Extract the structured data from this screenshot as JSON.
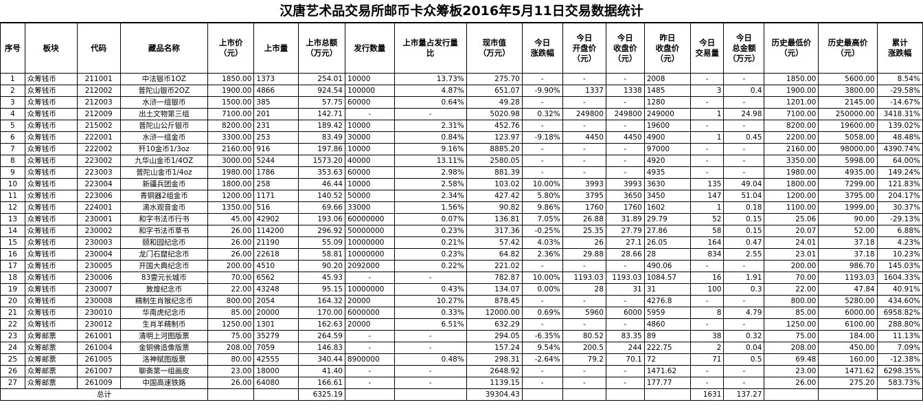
{
  "title": "汉唐艺术品交易所邮币卡众筹板2016年5月11日交易数据统计",
  "headers": [
    [
      "序号"
    ],
    [
      "板块"
    ],
    [
      "代码"
    ],
    [
      "藏品名称"
    ],
    [
      "上市价",
      "（元）"
    ],
    [
      "上市量"
    ],
    [
      "上市总额",
      "（万元）"
    ],
    [
      "发行数量"
    ],
    [
      "上市量占发行量",
      "比"
    ],
    [
      "现市值",
      "（万元）"
    ],
    [
      "今日",
      "涨跌幅"
    ],
    [
      "今日",
      "开盘价",
      "（元）"
    ],
    [
      "今日",
      "收盘价",
      "（元）"
    ],
    [
      "昨日",
      "收盘价",
      "（元）"
    ],
    [
      "今日",
      "交易量"
    ],
    [
      "今日",
      "总金额",
      "（万元）"
    ],
    [
      "历史最低价",
      "（元）"
    ],
    [
      "历史最高价",
      "（元）"
    ],
    [
      "累计",
      "涨跌幅"
    ]
  ],
  "rows": [
    [
      "1",
      "众筹钱币",
      "211001",
      "中法银币1OZ",
      "1850.00",
      "1373",
      "254.01",
      "10000",
      "13.73%",
      "275.70",
      "-",
      "-",
      "-",
      "2008",
      "-",
      "-",
      "1850.00",
      "5600.00",
      "8.54%"
    ],
    [
      "2",
      "众筹钱币",
      "212002",
      "普陀山银币2OZ",
      "1900.00",
      "4866",
      "924.54",
      "100000",
      "4.87%",
      "651.07",
      "-9.90%",
      "1337",
      "1338",
      "1485",
      "3",
      "0.4",
      "1900.00",
      "3800.00",
      "-29.58%"
    ],
    [
      "3",
      "众筹钱币",
      "212003",
      "水浒一组银币",
      "1500.00",
      "385",
      "57.75",
      "60000",
      "0.64%",
      "49.28",
      "-",
      "-",
      "-",
      "1280",
      "-",
      "-",
      "1201.00",
      "2145.00",
      "-14.67%"
    ],
    [
      "4",
      "众筹钱币",
      "212009",
      "出土文物第三组",
      "7100.00",
      "201",
      "142.71",
      "-",
      "-",
      "5020.98",
      "0.32%",
      "249800",
      "249800",
      "249000",
      "1",
      "24.98",
      "7100.00",
      "250000.00",
      "3418.31%"
    ],
    [
      "5",
      "众筹钱币",
      "215002",
      "普陀山公斤银币",
      "8200.00",
      "231",
      "189.42",
      "10000",
      "2.31%",
      "452.76",
      "-",
      "-",
      "-",
      "19600",
      "-",
      "-",
      "8200.00",
      "19600.00",
      "139.02%"
    ],
    [
      "6",
      "众筹钱币",
      "222001",
      "水浒一组金币",
      "3300.00",
      "253",
      "83.49",
      "30000",
      "0.84%",
      "123.97",
      "-9.18%",
      "4450",
      "4450",
      "4900",
      "1",
      "0.45",
      "2200.00",
      "5058.00",
      "48.48%"
    ],
    [
      "7",
      "众筹钱币",
      "222002",
      "歼10金币1/3oz",
      "2160.00",
      "916",
      "197.86",
      "10000",
      "9.16%",
      "8885.20",
      "-",
      "-",
      "-",
      "97000",
      "-",
      "-",
      "2160.00",
      "98000.00",
      "4390.74%"
    ],
    [
      "8",
      "众筹钱币",
      "223002",
      "九华山金币1/4OZ",
      "3000.00",
      "5244",
      "1573.20",
      "40000",
      "13.11%",
      "2580.05",
      "-",
      "-",
      "-",
      "4920",
      "-",
      "-",
      "3350.00",
      "5998.00",
      "64.00%"
    ],
    [
      "9",
      "众筹钱币",
      "223003",
      "普陀山金币1/4oz",
      "1980.00",
      "1786",
      "353.63",
      "60000",
      "2.98%",
      "881.39",
      "-",
      "-",
      "-",
      "4935",
      "-",
      "-",
      "1980.00",
      "4935.00",
      "149.24%"
    ],
    [
      "10",
      "众筹钱币",
      "223004",
      "新疆兵团金币",
      "1800.00",
      "258",
      "46.44",
      "10000",
      "2.58%",
      "103.02",
      "10.00%",
      "3993",
      "3993",
      "3630",
      "135",
      "49.04",
      "1800.00",
      "7299.00",
      "121.83%"
    ],
    [
      "11",
      "众筹钱币",
      "223006",
      "青铜器2组金币",
      "1200.00",
      "1171",
      "140.52",
      "50000",
      "2.34%",
      "427.42",
      "5.80%",
      "3795",
      "3650",
      "3450",
      "147",
      "51.04",
      "1200.00",
      "3795.00",
      "204.17%"
    ],
    [
      "12",
      "众筹钱币",
      "224001",
      "滴水观音金币",
      "1350.00",
      "516",
      "69.66",
      "33000",
      "1.56%",
      "90.82",
      "9.86%",
      "1760",
      "1760",
      "1602",
      "1",
      "0.18",
      "1100.00",
      "1999.00",
      "30.37%"
    ],
    [
      "13",
      "众筹钱币",
      "230001",
      "和字书法币行书",
      "45.00",
      "42902",
      "193.06",
      "60000000",
      "0.07%",
      "136.81",
      "7.05%",
      "26.88",
      "31.89",
      "29.79",
      "52",
      "0.15",
      "25.06",
      "90.00",
      "-29.13%"
    ],
    [
      "14",
      "众筹钱币",
      "230002",
      "和字书法币草书",
      "26.00",
      "114200",
      "296.92",
      "50000000",
      "0.23%",
      "317.36",
      "-0.25%",
      "25.35",
      "27.79",
      "27.86",
      "58",
      "0.15",
      "20.07",
      "52.00",
      "6.88%"
    ],
    [
      "15",
      "众筹钱币",
      "230003",
      "颐和园纪念币",
      "26.00",
      "21190",
      "55.09",
      "10000000",
      "0.21%",
      "57.42",
      "4.03%",
      "26",
      "27.1",
      "26.05",
      "164",
      "0.47",
      "24.01",
      "37.18",
      "4.23%"
    ],
    [
      "16",
      "众筹钱币",
      "230004",
      "龙门石窟纪念币",
      "26.00",
      "22618",
      "58.81",
      "10000000",
      "0.23%",
      "64.82",
      "2.36%",
      "29.88",
      "28.66",
      "28",
      "834",
      "2.55",
      "23.01",
      "37.18",
      "10.23%"
    ],
    [
      "17",
      "众筹钱币",
      "230005",
      "开国大典纪念币",
      "200.00",
      "4510",
      "90.20",
      "2092000",
      "0.22%",
      "221.02",
      "-",
      "-",
      "-",
      "490.06",
      "-",
      "-",
      "200.00",
      "986.70",
      "145.03%"
    ],
    [
      "18",
      "众筹钱币",
      "230006",
      "83壹元长城币",
      "70.00",
      "6562",
      "45.93",
      "-",
      "-",
      "782.87",
      "10.00%",
      "1193.03",
      "1193.03",
      "1084.57",
      "16",
      "1.91",
      "70.00",
      "1193.03",
      "1604.33%"
    ],
    [
      "19",
      "众筹钱币",
      "230007",
      "敦煌纪念币",
      "22.00",
      "43248",
      "95.15",
      "10000000",
      "0.43%",
      "134.07",
      "0.00%",
      "28",
      "31",
      "31",
      "100",
      "0.3",
      "22.00",
      "47.84",
      "40.91%"
    ],
    [
      "20",
      "众筹钱币",
      "230008",
      "精制生肖猴纪念币",
      "800.00",
      "2054",
      "164.32",
      "20000",
      "10.27%",
      "878.45",
      "-",
      "-",
      "-",
      "4276.8",
      "-",
      "-",
      "800.00",
      "5280.00",
      "434.60%"
    ],
    [
      "21",
      "众筹钱币",
      "230010",
      "华南虎纪念币",
      "85.00",
      "20000",
      "170.00",
      "6000000",
      "0.33%",
      "12000.00",
      "0.69%",
      "5960",
      "6000",
      "5959",
      "8",
      "4.79",
      "85.00",
      "6000.00",
      "6958.82%"
    ],
    [
      "22",
      "众筹钱币",
      "230012",
      "生肖羊精制币",
      "1250.00",
      "1301",
      "162.63",
      "20000",
      "6.51%",
      "632.29",
      "-",
      "-",
      "-",
      "4860",
      "-",
      "-",
      "1250.00",
      "6100.00",
      "288.80%"
    ],
    [
      "23",
      "众筹邮票",
      "261001",
      "清明上河图版票",
      "75.00",
      "35279",
      "264.59",
      "-",
      "-",
      "294.05",
      "-6.35%",
      "80.52",
      "83.35",
      "89",
      "38",
      "0.32",
      "75.00",
      "184.00",
      "11.13%"
    ],
    [
      "24",
      "众筹邮票",
      "261004",
      "金铜佛造像版票",
      "208.00",
      "7059",
      "146.83",
      "-",
      "-",
      "157.24",
      "9.54%",
      "200.5",
      "244",
      "222.75",
      "2",
      "0.04",
      "208.00",
      "450.00",
      "7.09%"
    ],
    [
      "25",
      "众筹邮票",
      "261005",
      "洛神赋图版票",
      "80.00",
      "42555",
      "340.44",
      "8900000",
      "0.48%",
      "298.31",
      "-2.64%",
      "79.2",
      "70.1",
      "72",
      "71",
      "0.5",
      "69.48",
      "160.00",
      "-12.38%"
    ],
    [
      "26",
      "众筹邮票",
      "261007",
      "聊斋第一组画皮",
      "23.00",
      "18000",
      "41.40",
      "-",
      "-",
      "2648.92",
      "-",
      "-",
      "-",
      "1471.62",
      "-",
      "-",
      "23.00",
      "1471.62",
      "6298.35%"
    ],
    [
      "27",
      "众筹邮票",
      "261009",
      "中国高速铁路",
      "26.00",
      "64080",
      "166.61",
      "-",
      "-",
      "1139.15",
      "-",
      "-",
      "-",
      "177.77",
      "-",
      "-",
      "26.00",
      "275.20",
      "583.73%"
    ]
  ],
  "total": {
    "label": "总计",
    "total_amount": "6325.19",
    "market_value": "39304.43",
    "volume": "1631",
    "amount": "137.27"
  }
}
